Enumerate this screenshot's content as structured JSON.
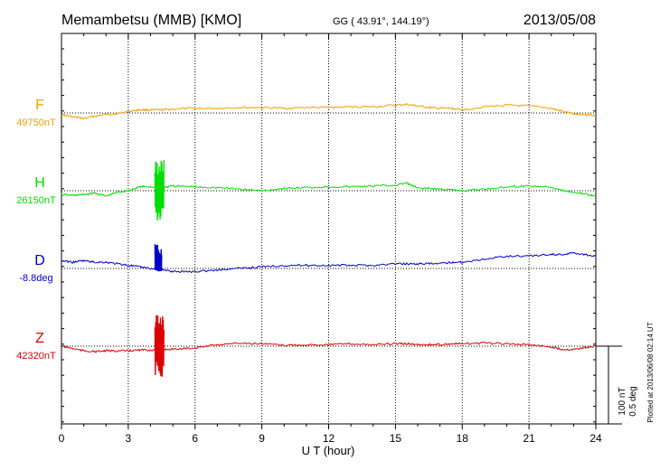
{
  "header": {
    "station": "Memambetsu (MMB)  [KMO]",
    "coords": "GG ( 43.91°, 144.19°)",
    "date": "2013/05/08"
  },
  "plotted_note": "Plotted at 2013/06/08 02:14 UT",
  "scale": {
    "nt": "100 nT",
    "deg": "0.5 deg"
  },
  "colors": {
    "F": "#f0a000",
    "H": "#00dd00",
    "D": "#0000cc",
    "Z": "#dd0000",
    "axis": "#000000",
    "grid": "#000000"
  },
  "chart_data": {
    "type": "line",
    "xlabel": "U T (hour)",
    "xlim": [
      0,
      24
    ],
    "x_ticks": [
      "0",
      "3",
      "6",
      "9",
      "12",
      "15",
      "18",
      "21",
      "24"
    ],
    "grid": true,
    "series": [
      {
        "name": "F",
        "baseline_label": "49750nT",
        "unit": "nT",
        "baseline": 49750,
        "x": [
          0,
          0.5,
          1,
          1.5,
          2,
          2.5,
          3,
          3.5,
          4,
          4.5,
          5,
          6,
          7,
          8,
          9,
          10,
          11,
          12,
          13,
          14,
          15,
          15.5,
          16,
          16.5,
          17,
          17.5,
          18,
          19,
          20,
          21,
          22,
          22.5,
          23,
          23.5,
          24
        ],
        "values": [
          49748,
          49745,
          49743,
          49746,
          49748,
          49749,
          49752,
          49754,
          49754,
          49754,
          49755,
          49756,
          49756,
          49757,
          49757,
          49756,
          49757,
          49757,
          49758,
          49758,
          49760,
          49761,
          49759,
          49757,
          49756,
          49756,
          49754,
          49758,
          49760,
          49759,
          49756,
          49752,
          49749,
          49748,
          49747
        ]
      },
      {
        "name": "H",
        "baseline_label": "26150nT",
        "unit": "nT",
        "baseline": 26150,
        "x": [
          0,
          0.5,
          1,
          1.5,
          2,
          2.5,
          3,
          3.5,
          4,
          4.5,
          5,
          6,
          7,
          8,
          9,
          10,
          11,
          12,
          13,
          14,
          15,
          15.5,
          16,
          16.5,
          17,
          17.5,
          18,
          19,
          20,
          21,
          22,
          22.5,
          23,
          23.5,
          24
        ],
        "values": [
          26145,
          26144,
          26145,
          26147,
          26143,
          26148,
          26150,
          26155,
          26155,
          26154,
          26156,
          26155,
          26154,
          26152,
          26150,
          26153,
          26154,
          26155,
          26155,
          26156,
          26157,
          26160,
          26153,
          26153,
          26152,
          26151,
          26150,
          26152,
          26155,
          26156,
          26155,
          26150,
          26148,
          26146,
          26143
        ]
      },
      {
        "name": "D",
        "baseline_label": "-8.8deg",
        "unit": "deg",
        "baseline": -8.8,
        "x": [
          0,
          0.5,
          1,
          1.5,
          2,
          2.5,
          3,
          3.5,
          4,
          4.5,
          5,
          6,
          7,
          8,
          9,
          10,
          11,
          12,
          13,
          14,
          15,
          15.5,
          16,
          16.5,
          17,
          17.5,
          18,
          19,
          20,
          21,
          22,
          22.5,
          23,
          23.5,
          24
        ],
        "values": [
          -8.75,
          -8.76,
          -8.75,
          -8.76,
          -8.76,
          -8.77,
          -8.78,
          -8.79,
          -8.8,
          -8.81,
          -8.82,
          -8.82,
          -8.81,
          -8.8,
          -8.79,
          -8.78,
          -8.78,
          -8.78,
          -8.78,
          -8.78,
          -8.77,
          -8.77,
          -8.77,
          -8.77,
          -8.77,
          -8.76,
          -8.76,
          -8.74,
          -8.72,
          -8.72,
          -8.71,
          -8.71,
          -8.7,
          -8.71,
          -8.72
        ]
      },
      {
        "name": "Z",
        "baseline_label": "42320nT",
        "unit": "nT",
        "baseline": 42320,
        "x": [
          0,
          0.5,
          1,
          1.5,
          2,
          2.5,
          3,
          3.5,
          4,
          4.5,
          5,
          6,
          7,
          8,
          9,
          10,
          11,
          12,
          13,
          14,
          15,
          15.5,
          16,
          16.5,
          17,
          17.5,
          18,
          19,
          20,
          21,
          22,
          22.5,
          23,
          23.5,
          24
        ],
        "values": [
          42320,
          42317,
          42314,
          42313,
          42314,
          42314,
          42314,
          42315,
          42315,
          42316,
          42316,
          42318,
          42322,
          42324,
          42323,
          42321,
          42322,
          42322,
          42323,
          42322,
          42323,
          42323,
          42322,
          42322,
          42322,
          42323,
          42323,
          42324,
          42323,
          42322,
          42319,
          42316,
          42316,
          42318,
          42320
        ]
      }
    ],
    "spikes": [
      {
        "series": "H",
        "x_start": 4.2,
        "x_end": 4.6,
        "min": 26110,
        "max": 26190
      },
      {
        "series": "D",
        "x_start": 4.2,
        "x_end": 4.5,
        "min": -8.82,
        "max": -8.62
      },
      {
        "series": "Z",
        "x_start": 4.2,
        "x_end": 4.6,
        "min": 42280,
        "max": 42360
      }
    ]
  }
}
